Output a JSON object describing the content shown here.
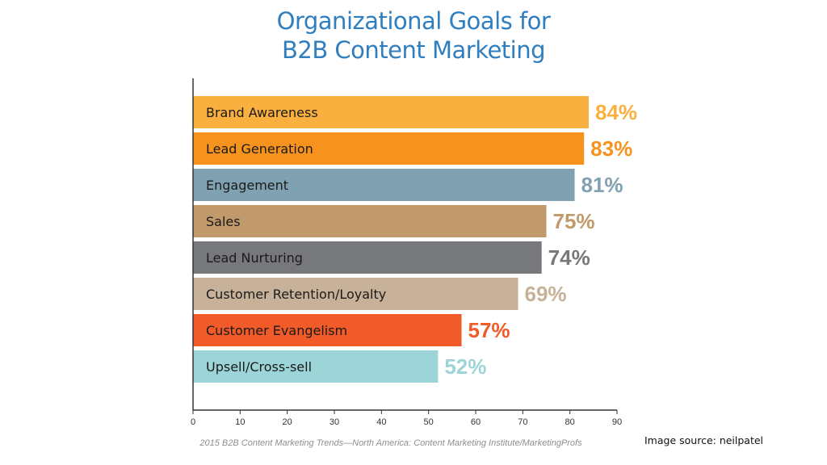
{
  "chart_data": {
    "type": "bar",
    "orientation": "horizontal",
    "title_lines": [
      "Organizational Goals for",
      "B2B Content Marketing"
    ],
    "categories": [
      "Brand Awareness",
      "Lead Generation",
      "Engagement",
      "Sales",
      "Lead Nurturing",
      "Customer Retention/Loyalty",
      "Customer Evangelism",
      "Upsell/Cross-sell"
    ],
    "values": [
      84,
      83,
      81,
      75,
      74,
      69,
      57,
      52
    ],
    "value_labels": [
      "84%",
      "83%",
      "81%",
      "75%",
      "74%",
      "69%",
      "57%",
      "52%"
    ],
    "colors": [
      "#f9b03f",
      "#f6921e",
      "#80a1b1",
      "#c19a6b",
      "#77787b",
      "#c7b299",
      "#f15a29",
      "#9cd4d8"
    ],
    "xlim": [
      0,
      90
    ],
    "xticks": [
      "0",
      "10",
      "20",
      "30",
      "40",
      "50",
      "60",
      "70",
      "80",
      "90"
    ],
    "grid": false,
    "legend": "none"
  },
  "source": "2015 B2B Content Marketing Trends—North America: Content Marketing Institute/MarketingProfs",
  "credit": "Image source: neilpatel"
}
